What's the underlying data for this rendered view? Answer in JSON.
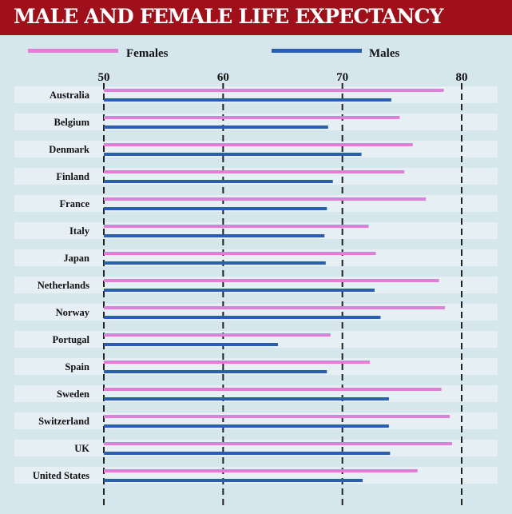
{
  "title": "MALE AND FEMALE LIFE EXPECTANCY",
  "colors": {
    "header": "#a0101a",
    "background": "#d5e6ec",
    "row_band": "#e6f0f4",
    "females": "#e07fd6",
    "males": "#2a5fb0",
    "gridline": "#222222"
  },
  "chart_data": {
    "type": "bar",
    "orientation": "horizontal",
    "title": "MALE AND FEMALE LIFE EXPECTANCY",
    "xlim": [
      50,
      80
    ],
    "ticks": [
      "50",
      "60",
      "70",
      "80"
    ],
    "grid": true,
    "legend_position": "top",
    "categories": [
      "Australia",
      "Belgium",
      "Denmark",
      "Finland",
      "France",
      "Italy",
      "Japan",
      "Netherlands",
      "Norway",
      "Portugal",
      "Spain",
      "Sweden",
      "Switzerland",
      "UK",
      "United States"
    ],
    "series": [
      {
        "name": "Females",
        "values": [
          78.5,
          74.8,
          75.9,
          75.2,
          77.0,
          72.2,
          72.8,
          78.1,
          78.6,
          69.0,
          72.3,
          78.3,
          79.0,
          79.2,
          76.3
        ]
      },
      {
        "name": "Males",
        "values": [
          74.1,
          68.8,
          71.6,
          69.2,
          68.7,
          68.5,
          68.6,
          72.7,
          73.2,
          64.6,
          68.7,
          73.9,
          73.9,
          74.0,
          71.7
        ]
      }
    ]
  }
}
